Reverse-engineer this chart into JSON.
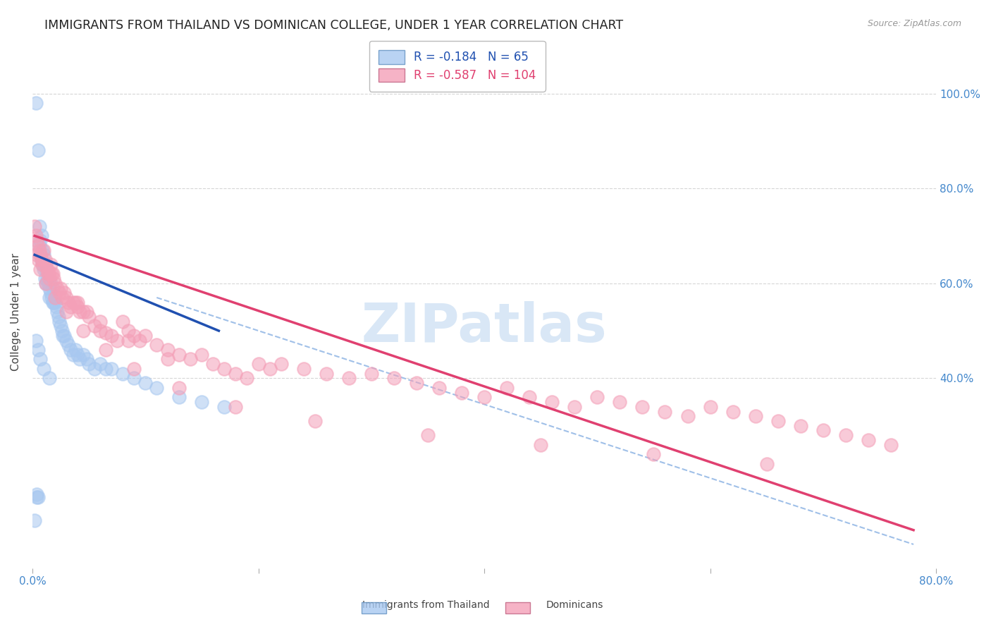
{
  "title": "IMMIGRANTS FROM THAILAND VS DOMINICAN COLLEGE, UNDER 1 YEAR CORRELATION CHART",
  "source": "Source: ZipAtlas.com",
  "ylabel": "College, Under 1 year",
  "xlim": [
    0.0,
    0.8
  ],
  "ylim": [
    0.0,
    1.08
  ],
  "yticks": [
    0.4,
    0.6,
    0.8,
    1.0
  ],
  "ytick_labels": [
    "40.0%",
    "60.0%",
    "80.0%",
    "100.0%"
  ],
  "legend_blue_label": "Immigrants from Thailand",
  "legend_pink_label": "Dominicans",
  "R_blue": -0.184,
  "N_blue": 65,
  "R_pink": -0.587,
  "N_pink": 104,
  "blue_color": "#A8C8F0",
  "pink_color": "#F4A0B8",
  "trend_blue": "#2050B0",
  "trend_pink": "#E04070",
  "trend_dashed_color": "#A0C0E8",
  "axis_label_color": "#4488CC",
  "background_color": "#FFFFFF",
  "grid_color": "#CCCCCC",
  "title_fontsize": 12.5,
  "source_fontsize": 9,
  "blue_x": [
    0.002,
    0.003,
    0.004,
    0.004,
    0.005,
    0.005,
    0.006,
    0.006,
    0.007,
    0.007,
    0.008,
    0.008,
    0.009,
    0.009,
    0.01,
    0.01,
    0.011,
    0.011,
    0.012,
    0.012,
    0.013,
    0.014,
    0.015,
    0.015,
    0.016,
    0.016,
    0.017,
    0.018,
    0.018,
    0.019,
    0.02,
    0.021,
    0.022,
    0.023,
    0.024,
    0.025,
    0.026,
    0.027,
    0.028,
    0.03,
    0.032,
    0.034,
    0.036,
    0.038,
    0.04,
    0.042,
    0.045,
    0.048,
    0.05,
    0.055,
    0.06,
    0.065,
    0.07,
    0.08,
    0.09,
    0.1,
    0.11,
    0.13,
    0.15,
    0.17,
    0.003,
    0.005,
    0.007,
    0.01,
    0.015
  ],
  "blue_y": [
    0.1,
    0.98,
    0.15,
    0.155,
    0.88,
    0.15,
    0.72,
    0.68,
    0.69,
    0.66,
    0.7,
    0.65,
    0.67,
    0.64,
    0.66,
    0.63,
    0.64,
    0.61,
    0.63,
    0.6,
    0.61,
    0.6,
    0.59,
    0.57,
    0.6,
    0.58,
    0.57,
    0.56,
    0.59,
    0.56,
    0.56,
    0.55,
    0.54,
    0.53,
    0.52,
    0.51,
    0.5,
    0.49,
    0.49,
    0.48,
    0.47,
    0.46,
    0.45,
    0.46,
    0.45,
    0.44,
    0.45,
    0.44,
    0.43,
    0.42,
    0.43,
    0.42,
    0.42,
    0.41,
    0.4,
    0.39,
    0.38,
    0.36,
    0.35,
    0.34,
    0.48,
    0.46,
    0.44,
    0.42,
    0.4
  ],
  "pink_x": [
    0.002,
    0.003,
    0.004,
    0.005,
    0.006,
    0.007,
    0.008,
    0.009,
    0.01,
    0.011,
    0.012,
    0.013,
    0.014,
    0.015,
    0.016,
    0.017,
    0.018,
    0.019,
    0.02,
    0.022,
    0.024,
    0.026,
    0.028,
    0.03,
    0.032,
    0.034,
    0.036,
    0.038,
    0.04,
    0.042,
    0.045,
    0.048,
    0.05,
    0.055,
    0.06,
    0.065,
    0.07,
    0.075,
    0.08,
    0.085,
    0.09,
    0.095,
    0.1,
    0.11,
    0.12,
    0.13,
    0.14,
    0.15,
    0.16,
    0.17,
    0.18,
    0.19,
    0.2,
    0.21,
    0.22,
    0.24,
    0.26,
    0.28,
    0.3,
    0.32,
    0.34,
    0.36,
    0.38,
    0.4,
    0.42,
    0.44,
    0.46,
    0.48,
    0.5,
    0.52,
    0.54,
    0.56,
    0.58,
    0.6,
    0.62,
    0.64,
    0.66,
    0.68,
    0.7,
    0.72,
    0.74,
    0.76,
    0.003,
    0.007,
    0.012,
    0.02,
    0.03,
    0.045,
    0.065,
    0.09,
    0.13,
    0.18,
    0.25,
    0.35,
    0.45,
    0.55,
    0.65,
    0.005,
    0.015,
    0.025,
    0.04,
    0.06,
    0.085,
    0.12
  ],
  "pink_y": [
    0.72,
    0.7,
    0.69,
    0.68,
    0.67,
    0.66,
    0.65,
    0.64,
    0.67,
    0.65,
    0.64,
    0.63,
    0.62,
    0.61,
    0.64,
    0.62,
    0.62,
    0.61,
    0.6,
    0.59,
    0.58,
    0.57,
    0.58,
    0.57,
    0.56,
    0.55,
    0.56,
    0.56,
    0.55,
    0.54,
    0.54,
    0.54,
    0.53,
    0.51,
    0.5,
    0.495,
    0.49,
    0.48,
    0.52,
    0.5,
    0.49,
    0.48,
    0.49,
    0.47,
    0.46,
    0.45,
    0.44,
    0.45,
    0.43,
    0.42,
    0.41,
    0.4,
    0.43,
    0.42,
    0.43,
    0.42,
    0.41,
    0.4,
    0.41,
    0.4,
    0.39,
    0.38,
    0.37,
    0.36,
    0.38,
    0.36,
    0.35,
    0.34,
    0.36,
    0.35,
    0.34,
    0.33,
    0.32,
    0.34,
    0.33,
    0.32,
    0.31,
    0.3,
    0.29,
    0.28,
    0.27,
    0.26,
    0.66,
    0.63,
    0.6,
    0.57,
    0.54,
    0.5,
    0.46,
    0.42,
    0.38,
    0.34,
    0.31,
    0.28,
    0.26,
    0.24,
    0.22,
    0.65,
    0.62,
    0.59,
    0.56,
    0.52,
    0.48,
    0.44
  ],
  "blue_trend_x": [
    0.002,
    0.165
  ],
  "blue_trend_y": [
    0.66,
    0.5
  ],
  "pink_trend_x": [
    0.002,
    0.78
  ],
  "pink_trend_y": [
    0.7,
    0.08
  ],
  "dashed_trend_x": [
    0.11,
    0.78
  ],
  "dashed_trend_y": [
    0.57,
    0.05
  ],
  "watermark_text": "ZIPatlas",
  "watermark_color": "#C0D8F0"
}
